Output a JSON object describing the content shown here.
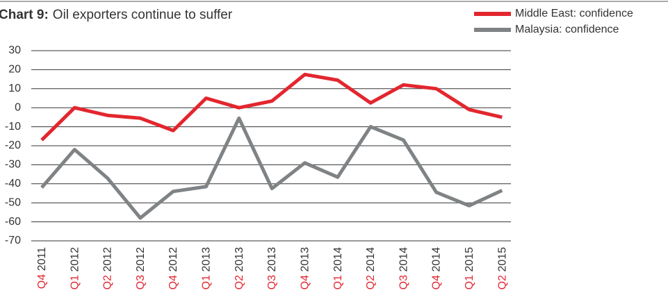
{
  "chart_data": {
    "type": "line",
    "title_label": "Chart 9:",
    "title": "Oil exporters continue to suffer",
    "categories": [
      "Q4 2011",
      "Q1 2012",
      "Q2 2012",
      "Q3 2012",
      "Q4 2012",
      "Q1 2013",
      "Q2 2013",
      "Q3 2013",
      "Q4 2013",
      "Q1 2014",
      "Q2 2014",
      "Q3 2014",
      "Q4 2014",
      "Q1 2015",
      "Q2 2015"
    ],
    "series": [
      {
        "name": "Middle East: confidence",
        "color": "#e3262e",
        "values": [
          -17,
          0,
          -4,
          -5.5,
          -12,
          5,
          0,
          3.5,
          17.5,
          14.5,
          2.5,
          12,
          10,
          -1,
          -5
        ]
      },
      {
        "name": "Malaysia: confidence",
        "color": "#7f8385",
        "values": [
          -42,
          -22,
          -37,
          -58,
          -44,
          -41.5,
          -5.5,
          -42.5,
          -29,
          -36.5,
          -10,
          -17,
          -44.5,
          -51.5,
          -43.5
        ]
      }
    ],
    "ylim": [
      -70,
      30
    ],
    "yticks": [
      30,
      20,
      10,
      0,
      -10,
      -20,
      -30,
      -40,
      -50,
      -60,
      -70
    ],
    "grid": true,
    "legend": "top-right"
  }
}
